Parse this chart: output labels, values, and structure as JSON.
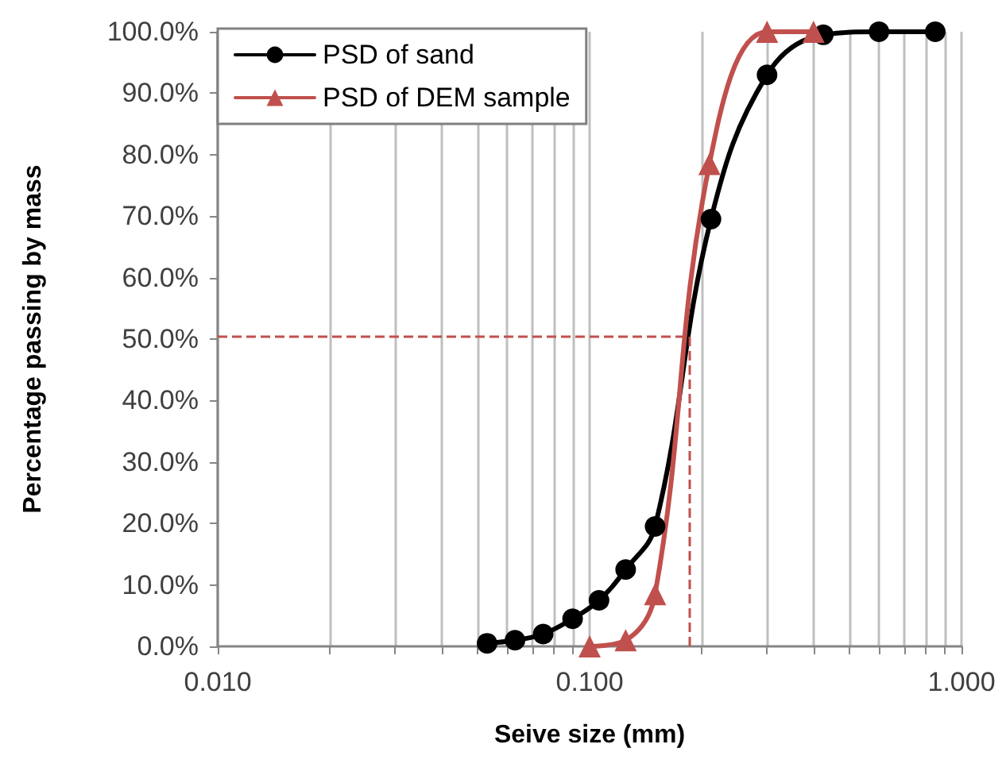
{
  "chart_data": {
    "type": "line",
    "xlabel": "Seive size (mm)",
    "ylabel": "Percentage passing by mass",
    "log": "x",
    "grid": "x",
    "legend": "top left",
    "line_style": "solid",
    "xlim": [
      0.01,
      1
    ],
    "xticks": [
      {
        "value": 0.01,
        "label": "0.010"
      },
      {
        "value": 0.02,
        "label": null
      },
      {
        "value": 0.03,
        "label": null
      },
      {
        "value": 0.04,
        "label": null
      },
      {
        "value": 0.05,
        "label": null
      },
      {
        "value": 0.06,
        "label": null
      },
      {
        "value": 0.07,
        "label": null
      },
      {
        "value": 0.08,
        "label": null
      },
      {
        "value": 0.09,
        "label": null
      },
      {
        "value": 0.1,
        "label": "0.100"
      },
      {
        "value": 0.2,
        "label": null
      },
      {
        "value": 0.3,
        "label": null
      },
      {
        "value": 0.4,
        "label": null
      },
      {
        "value": 0.5,
        "label": null
      },
      {
        "value": 0.6,
        "label": null
      },
      {
        "value": 0.7,
        "label": null
      },
      {
        "value": 0.8,
        "label": null
      },
      {
        "value": 0.9,
        "label": null
      },
      {
        "value": 1,
        "label": "1.000"
      }
    ],
    "ylim": [
      0,
      100
    ],
    "yticks": [
      {
        "value": 0,
        "label": "0.0%"
      },
      {
        "value": 10,
        "label": "10.0%"
      },
      {
        "value": 20,
        "label": "20.0%"
      },
      {
        "value": 30,
        "label": "30.0%"
      },
      {
        "value": 40,
        "label": "40.0%"
      },
      {
        "value": 50,
        "label": "50.0%"
      },
      {
        "value": 60,
        "label": "60.0%"
      },
      {
        "value": 70,
        "label": "70.0%"
      },
      {
        "value": 80,
        "label": "80.0%"
      },
      {
        "value": 90,
        "label": "90.0%"
      },
      {
        "value": 100,
        "label": "100.0%"
      }
    ],
    "series": [
      {
        "name": "PSD of sand",
        "color": "#000000",
        "marker": "circle",
        "x": [
          0.053,
          0.063,
          0.075,
          0.09,
          0.106,
          0.125,
          0.15,
          0.212,
          0.3,
          0.425,
          0.6,
          0.85
        ],
        "values": [
          0.5,
          1,
          2,
          4.5,
          7.5,
          12.5,
          19.5,
          69.5,
          93,
          99.5,
          100,
          100
        ]
      },
      {
        "name": "PSD of DEM sample",
        "color": "#c0504d",
        "marker": "triangle",
        "x": [
          0.1,
          0.125,
          0.15,
          0.21,
          0.3,
          0.4
        ],
        "values": [
          0,
          1,
          8.5,
          78.5,
          100,
          100
        ]
      }
    ],
    "ref_lines": [
      {
        "axis": "y",
        "value": 50.5,
        "color": "#c0504d",
        "line_style": "dashed"
      },
      {
        "axis": "x",
        "value": 0.186,
        "color": "#c0504d",
        "line_style": "dashed"
      }
    ]
  }
}
